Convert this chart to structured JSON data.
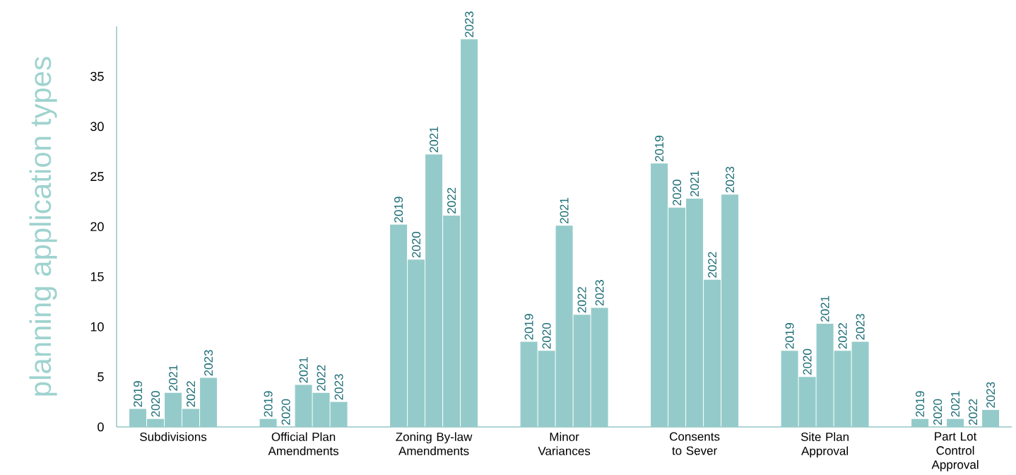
{
  "chart_data": {
    "type": "bar",
    "ylabel": "planning application types",
    "categories": [
      "Subdivisions",
      "Official Plan Amendments",
      "Zoning By-law Amendments",
      "Minor Variances",
      "Consents to Sever",
      "Site Plan Approval",
      "Part Lot Control Approval"
    ],
    "series": [
      {
        "name": "2019",
        "color": "#94cbca",
        "values": [
          1.8,
          0.8,
          20.2,
          8.5,
          26.3,
          7.6,
          0.8
        ]
      },
      {
        "name": "2020",
        "color": "#94cbca",
        "values": [
          0.8,
          0,
          16.7,
          7.6,
          21.9,
          5.0,
          0
        ]
      },
      {
        "name": "2021",
        "color": "#94cbca",
        "values": [
          3.4,
          4.2,
          27.2,
          20.1,
          22.8,
          10.3,
          0.8
        ]
      },
      {
        "name": "2022",
        "color": "#94cbca",
        "values": [
          1.8,
          3.4,
          21.1,
          11.2,
          14.7,
          7.6,
          0
        ]
      },
      {
        "name": "2023",
        "color": "#94cbca",
        "values": [
          4.9,
          2.5,
          38.7,
          11.9,
          23.2,
          8.5,
          1.7
        ]
      }
    ],
    "ylim": [
      0,
      40
    ],
    "yticks": [
      0,
      5,
      10,
      15,
      20,
      25,
      30,
      35
    ],
    "grid": false,
    "legend": false
  }
}
